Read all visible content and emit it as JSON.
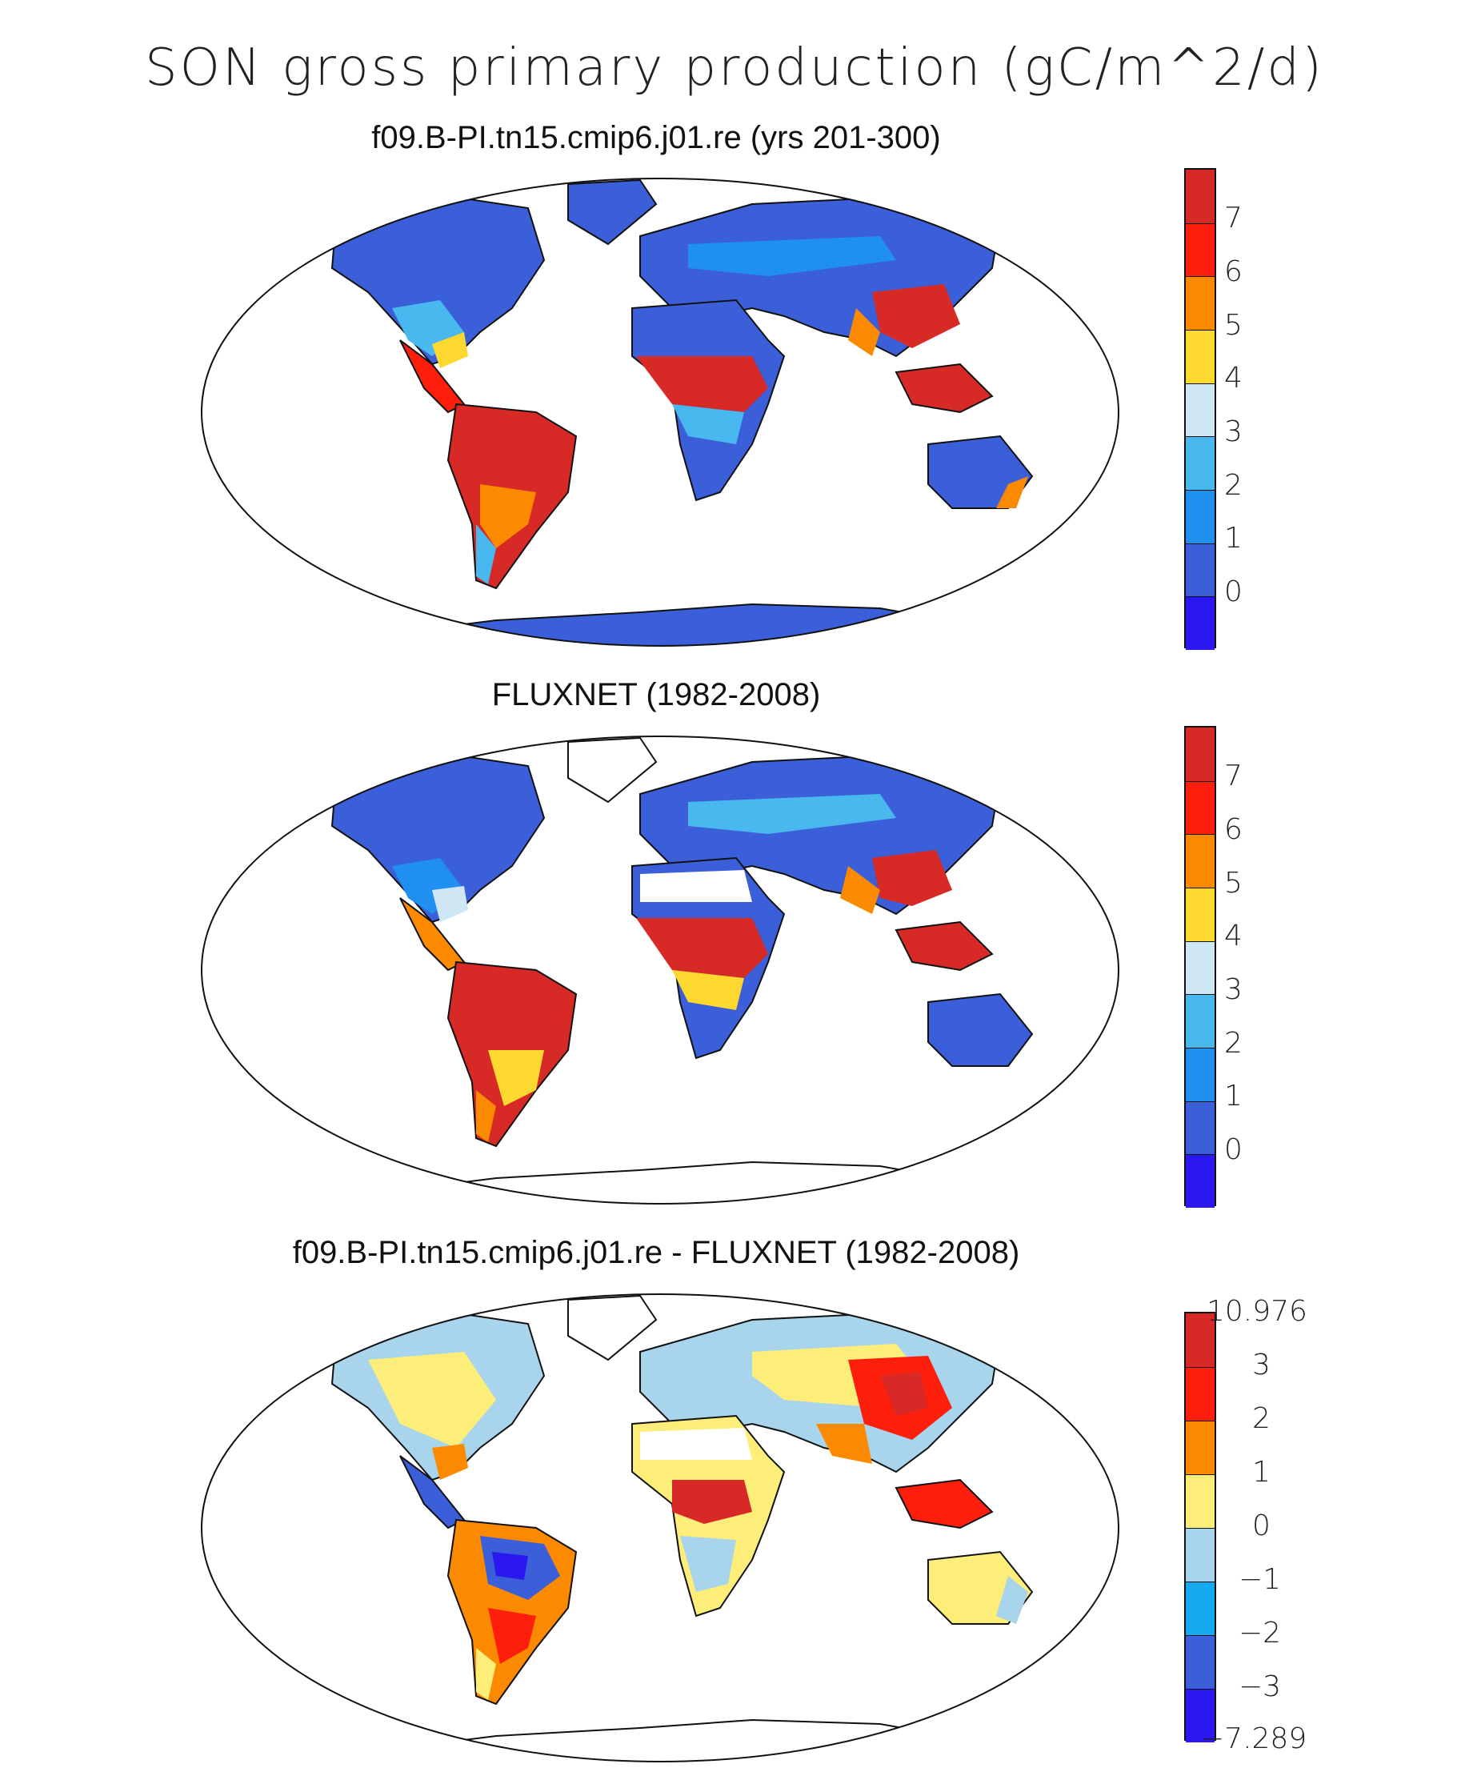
{
  "figure": {
    "title": "SON gross primary production (gC/m^2/d)"
  },
  "panels": [
    {
      "title": "f09.B-PI.tn15.cmip6.j01.re (yrs 201-300)",
      "colorbar": {
        "colors": [
          "#2b17f0",
          "#3a5fd9",
          "#1f8ff0",
          "#48b8ef",
          "#cfe6f5",
          "#fdd82e",
          "#fc8a00",
          "#fe1e0c",
          "#d72a26"
        ],
        "labels": [
          "0",
          "1",
          "2",
          "3",
          "4",
          "5",
          "6",
          "7"
        ]
      }
    },
    {
      "title": "FLUXNET (1982-2008)",
      "colorbar": {
        "colors": [
          "#2b17f0",
          "#3a5fd9",
          "#1f8ff0",
          "#48b8ef",
          "#cfe6f5",
          "#fdd82e",
          "#fc8a00",
          "#fe1e0c",
          "#d72a26"
        ],
        "labels": [
          "0",
          "1",
          "2",
          "3",
          "4",
          "5",
          "6",
          "7"
        ]
      }
    },
    {
      "title": "f09.B-PI.tn15.cmip6.j01.re - FLUXNET (1982-2008)",
      "colorbar": {
        "colors": [
          "#2b17f0",
          "#3a5fd9",
          "#14a9f0",
          "#a8d4ec",
          "#fdee7a",
          "#fc8a00",
          "#fe1e0c",
          "#d72a26"
        ],
        "labels": [
          "−7.289",
          "−3",
          "−2",
          "−1",
          "0",
          "1",
          "2",
          "3",
          "10.976"
        ]
      }
    }
  ]
}
